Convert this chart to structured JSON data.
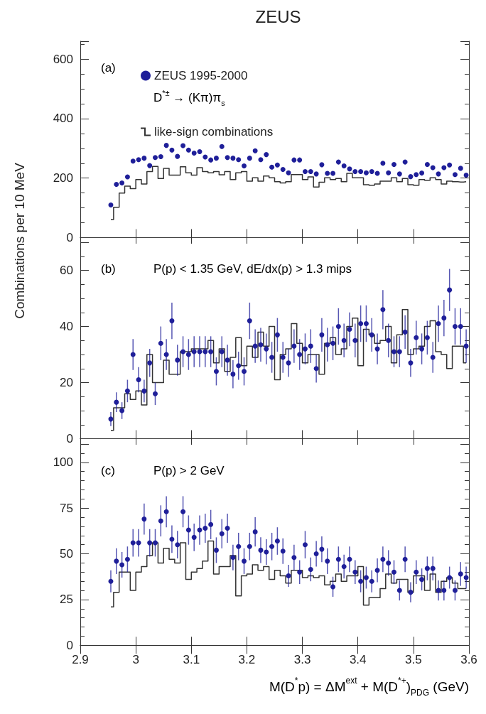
{
  "chart_data": [
    {
      "type": "scatter",
      "title": "ZEUS",
      "ylabel": "Combinations per 10 MeV",
      "annotations": [
        "(a)",
        "D$^{*±}$ → (Kπ)π$_{s}$"
      ],
      "legend": "top left",
      "marker": "circle",
      "tick_labels": "y",
      "xlim": [
        2.9,
        3.6
      ],
      "xticks": [
        2.9,
        3,
        3.1,
        3.2,
        3.3,
        3.4,
        3.5,
        3.6
      ],
      "ylim": [
        0,
        660
      ],
      "yticks": [
        0,
        200,
        400,
        600
      ],
      "x": [
        2.955,
        2.965,
        2.975,
        2.985,
        2.995,
        3.005,
        3.015,
        3.025,
        3.035,
        3.045,
        3.055,
        3.065,
        3.075,
        3.085,
        3.095,
        3.105,
        3.115,
        3.125,
        3.135,
        3.145,
        3.155,
        3.165,
        3.175,
        3.185,
        3.195,
        3.205,
        3.215,
        3.225,
        3.235,
        3.245,
        3.255,
        3.265,
        3.275,
        3.285,
        3.295,
        3.305,
        3.315,
        3.325,
        3.335,
        3.345,
        3.355,
        3.365,
        3.375,
        3.385,
        3.395,
        3.405,
        3.415,
        3.425,
        3.435,
        3.445,
        3.455,
        3.465,
        3.475,
        3.485,
        3.495,
        3.505,
        3.515,
        3.525,
        3.535,
        3.545,
        3.555,
        3.565,
        3.575,
        3.585,
        3.595
      ],
      "series": [
        {
          "name": "ZEUS 1995-2000",
          "color": "#1f1f99",
          "values": [
            110,
            179,
            184,
            204,
            257,
            262,
            267,
            242,
            269,
            272,
            310,
            294,
            273,
            309,
            294,
            284,
            289,
            271,
            261,
            267,
            306,
            269,
            267,
            262,
            241,
            267,
            292,
            262,
            279,
            237,
            244,
            229,
            218,
            261,
            261,
            222,
            222,
            214,
            245,
            216,
            216,
            254,
            241,
            231,
            222,
            222,
            218,
            222,
            216,
            250,
            218,
            246,
            214,
            254,
            205,
            212,
            217,
            246,
            235,
            214,
            235,
            244,
            212,
            233,
            210
          ]
        },
        {
          "type": "step",
          "name": "like-sign combinations",
          "marker": "none",
          "color": "#333333",
          "values": [
            61,
            102,
            150,
            173,
            165,
            195,
            180,
            222,
            239,
            199,
            233,
            210,
            210,
            238,
            218,
            210,
            235,
            222,
            218,
            222,
            211,
            222,
            195,
            218,
            222,
            190,
            201,
            190,
            207,
            201,
            188,
            184,
            188,
            212,
            212,
            195,
            204,
            170,
            186,
            201,
            195,
            199,
            188,
            216,
            201,
            201,
            178,
            176,
            180,
            190,
            190,
            201,
            188,
            199,
            178,
            176,
            195,
            193,
            201,
            195,
            180,
            190,
            188,
            187,
            188
          ]
        }
      ]
    },
    {
      "type": "scatter",
      "annotations": [
        "(b)",
        "P(p) < 1.35 GeV, dE/dx(p) > 1.3 mips"
      ],
      "marker": "circle",
      "tick_labels": "y",
      "xlim": [
        2.9,
        3.6
      ],
      "xticks": [
        2.9,
        3,
        3.1,
        3.2,
        3.3,
        3.4,
        3.5,
        3.6
      ],
      "ylim": [
        0,
        70
      ],
      "yticks": [
        0,
        20,
        40,
        60
      ],
      "x": [
        2.955,
        2.965,
        2.975,
        2.985,
        2.995,
        3.005,
        3.015,
        3.025,
        3.035,
        3.045,
        3.055,
        3.065,
        3.075,
        3.085,
        3.095,
        3.105,
        3.115,
        3.125,
        3.135,
        3.145,
        3.155,
        3.165,
        3.175,
        3.185,
        3.195,
        3.205,
        3.215,
        3.225,
        3.235,
        3.245,
        3.255,
        3.265,
        3.275,
        3.285,
        3.295,
        3.305,
        3.315,
        3.325,
        3.335,
        3.345,
        3.355,
        3.365,
        3.375,
        3.385,
        3.395,
        3.405,
        3.415,
        3.425,
        3.435,
        3.445,
        3.455,
        3.465,
        3.475,
        3.485,
        3.495,
        3.505,
        3.515,
        3.525,
        3.535,
        3.545,
        3.555,
        3.565,
        3.575,
        3.585,
        3.595
      ],
      "series": [
        {
          "color": "#1f1f99",
          "values": [
            7,
            13,
            10,
            17,
            30,
            21,
            17,
            27,
            16,
            34,
            30,
            42,
            28,
            31,
            30,
            31,
            31,
            31,
            31,
            24,
            31,
            28,
            23,
            26,
            24,
            42,
            33,
            33.5,
            32,
            29,
            37,
            29,
            27,
            33,
            30,
            32,
            33,
            25,
            37,
            33.5,
            34,
            40,
            35,
            39,
            35,
            41,
            41,
            37,
            32,
            46,
            35,
            31,
            31,
            38,
            27,
            36,
            32,
            36,
            29,
            41,
            43,
            53,
            40,
            40,
            33
          ],
          "errors": [
            2.5,
            3.5,
            3,
            4,
            5.5,
            4.5,
            4,
            5,
            4,
            6,
            5.5,
            6.5,
            5.5,
            5.5,
            5.5,
            5.5,
            5.5,
            5.5,
            5.5,
            5,
            5.5,
            5.5,
            5,
            5,
            5,
            6.5,
            6,
            6,
            5.5,
            5.5,
            6,
            5.5,
            5,
            6,
            5.5,
            5.5,
            6,
            5,
            6,
            6,
            6,
            6.5,
            6,
            6,
            6,
            6.5,
            6.5,
            6,
            5.5,
            7,
            6,
            5.5,
            5.5,
            6,
            5,
            6,
            5.5,
            6,
            5.5,
            6.5,
            6.5,
            7.5,
            6.5,
            6.5,
            6
          ]
        },
        {
          "type": "step",
          "marker": "none",
          "color": "#333333",
          "values": [
            3,
            11,
            11,
            16,
            14,
            17,
            12,
            30,
            20,
            20,
            28,
            23,
            23,
            31,
            31,
            32,
            32,
            32,
            35,
            27,
            32,
            24,
            29,
            36,
            26,
            33,
            29,
            38,
            33,
            40,
            21,
            30,
            32,
            41,
            34,
            27,
            30,
            30,
            23,
            34,
            36,
            30,
            32,
            40,
            43,
            26,
            39,
            37,
            34,
            35,
            40,
            27,
            37,
            46,
            30,
            32,
            33,
            40,
            42,
            31,
            30,
            25,
            33,
            33,
            27
          ]
        }
      ]
    },
    {
      "type": "scatter",
      "annotations": [
        "(c)",
        "P(p) > 2 GeV"
      ],
      "xlabel": "M(D$^{*}$p) = ΔM$^{ext}$ + M(D$^{*+}$)$_{PDG}$ (GeV)",
      "marker": "circle",
      "xlim": [
        2.9,
        3.6
      ],
      "xticks": [
        2.9,
        3,
        3.1,
        3.2,
        3.3,
        3.4,
        3.5,
        3.6
      ],
      "ylim": [
        0,
        110
      ],
      "yticks": [
        0,
        25,
        50,
        75,
        100
      ],
      "x": [
        2.955,
        2.965,
        2.975,
        2.985,
        2.995,
        3.005,
        3.015,
        3.025,
        3.035,
        3.045,
        3.055,
        3.065,
        3.075,
        3.085,
        3.095,
        3.105,
        3.115,
        3.125,
        3.135,
        3.145,
        3.155,
        3.165,
        3.175,
        3.185,
        3.195,
        3.205,
        3.215,
        3.225,
        3.235,
        3.245,
        3.255,
        3.265,
        3.275,
        3.285,
        3.295,
        3.305,
        3.315,
        3.325,
        3.335,
        3.345,
        3.355,
        3.365,
        3.375,
        3.385,
        3.395,
        3.405,
        3.415,
        3.425,
        3.435,
        3.445,
        3.455,
        3.465,
        3.475,
        3.485,
        3.495,
        3.505,
        3.515,
        3.525,
        3.535,
        3.545,
        3.555,
        3.565,
        3.575,
        3.585,
        3.595
      ],
      "series": [
        {
          "color": "#1f1f99",
          "values": [
            35,
            46,
            44,
            47,
            56,
            56,
            69,
            56,
            56,
            68,
            73,
            58,
            55,
            73,
            63,
            59,
            63,
            64,
            66,
            52,
            61,
            64,
            48,
            54,
            46,
            54,
            62,
            52,
            51,
            54,
            57,
            51.5,
            38,
            48,
            40,
            55,
            41.5,
            50,
            52.5,
            46,
            32,
            47,
            43,
            47,
            40,
            35,
            37,
            35,
            41,
            47,
            45,
            40,
            30,
            47,
            29,
            40,
            36,
            42,
            42,
            30,
            30,
            37,
            30,
            39,
            37
          ],
          "errors": [
            6,
            7,
            7,
            7,
            7.5,
            7.5,
            8.5,
            7.5,
            7.5,
            8.5,
            8.5,
            7.5,
            7.5,
            8.5,
            8,
            7.5,
            8,
            8,
            8,
            7,
            8,
            8,
            7,
            7.5,
            7,
            7.5,
            8,
            7,
            7,
            7.5,
            7.5,
            7,
            6,
            7,
            6.5,
            7.5,
            6.5,
            7,
            7,
            7,
            5.5,
            7,
            6.5,
            7,
            6.5,
            6,
            6,
            6,
            6.5,
            7,
            7,
            6.5,
            5.5,
            7,
            5.5,
            6.5,
            6,
            6.5,
            6.5,
            5.5,
            5.5,
            6,
            5.5,
            6.5,
            6
          ]
        },
        {
          "type": "step",
          "marker": "none",
          "color": "#333333",
          "values": [
            21,
            29,
            40,
            40,
            30,
            40,
            43,
            49,
            56,
            45,
            53,
            47,
            45,
            56,
            36,
            40,
            42,
            46,
            57,
            39,
            43,
            43,
            49,
            27,
            38,
            39,
            44,
            41,
            43,
            36,
            41,
            38,
            34,
            41,
            41,
            37,
            38,
            37,
            38,
            33,
            35,
            39,
            35,
            38,
            38,
            43,
            22,
            26,
            26,
            31,
            39,
            34,
            36,
            36,
            29,
            38,
            38,
            30,
            39,
            29,
            35,
            37,
            34,
            31,
            31
          ]
        }
      ]
    }
  ]
}
